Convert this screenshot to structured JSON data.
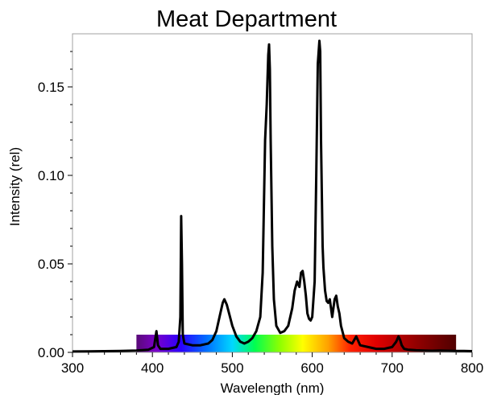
{
  "chart_data": {
    "type": "line",
    "title": "Meat Department",
    "xlabel": "Wavelength (nm)",
    "ylabel": "Intensity (rel)",
    "xlim": [
      300,
      800
    ],
    "ylim": [
      0,
      0.18
    ],
    "x_ticks": [
      300,
      400,
      500,
      600,
      700,
      800
    ],
    "x_tick_labels": [
      "300",
      "400",
      "500",
      "600",
      "700",
      "800"
    ],
    "y_ticks": [
      0,
      0.05,
      0.1,
      0.15
    ],
    "y_tick_labels": [
      "0.00",
      "0.05",
      "0.10",
      "0.15"
    ],
    "grid": false,
    "legend": "none",
    "colors": {
      "line": "#000000",
      "frame": "#a0a0a0"
    },
    "spectrum_band": {
      "x_start": 380,
      "x_end": 780,
      "y_top": 0.01
    },
    "series": [
      {
        "x": [
          300,
          320,
          340,
          360,
          380,
          395,
          402,
          405,
          407,
          410,
          420,
          430,
          433,
          435,
          436,
          437,
          438,
          440,
          450,
          460,
          470,
          475,
          480,
          485,
          488,
          490,
          493,
          496,
          500,
          505,
          510,
          515,
          520,
          525,
          530,
          535,
          538,
          541,
          543,
          545,
          546,
          547,
          548,
          550,
          552,
          555,
          560,
          565,
          570,
          575,
          578,
          581,
          584,
          586,
          588,
          590,
          592,
          594,
          596,
          598,
          600,
          603,
          605,
          607,
          609,
          610,
          611,
          612,
          613,
          614,
          616,
          618,
          620,
          622,
          625,
          628,
          630,
          632,
          634,
          636,
          640,
          645,
          650,
          655,
          660,
          670,
          680,
          690,
          700,
          705,
          708,
          710,
          712,
          715,
          720,
          730,
          740,
          750,
          760,
          770,
          780,
          790,
          800
        ],
        "y": [
          0.0005,
          0.0006,
          0.0007,
          0.0008,
          0.001,
          0.0015,
          0.003,
          0.012,
          0.004,
          0.002,
          0.002,
          0.003,
          0.006,
          0.02,
          0.077,
          0.05,
          0.01,
          0.005,
          0.004,
          0.004,
          0.005,
          0.007,
          0.012,
          0.022,
          0.028,
          0.03,
          0.027,
          0.022,
          0.015,
          0.009,
          0.006,
          0.005,
          0.006,
          0.008,
          0.012,
          0.02,
          0.045,
          0.12,
          0.14,
          0.168,
          0.174,
          0.16,
          0.12,
          0.06,
          0.03,
          0.015,
          0.011,
          0.012,
          0.015,
          0.025,
          0.035,
          0.04,
          0.037,
          0.045,
          0.046,
          0.04,
          0.032,
          0.022,
          0.019,
          0.018,
          0.02,
          0.04,
          0.1,
          0.163,
          0.176,
          0.17,
          0.12,
          0.09,
          0.06,
          0.048,
          0.035,
          0.029,
          0.028,
          0.03,
          0.02,
          0.03,
          0.032,
          0.026,
          0.022,
          0.015,
          0.008,
          0.006,
          0.005,
          0.009,
          0.004,
          0.003,
          0.002,
          0.002,
          0.003,
          0.006,
          0.009,
          0.007,
          0.004,
          0.002,
          0.0015,
          0.0012,
          0.001,
          0.0009,
          0.001,
          0.0009,
          0.0008,
          0.0008,
          0.0007
        ]
      }
    ]
  }
}
